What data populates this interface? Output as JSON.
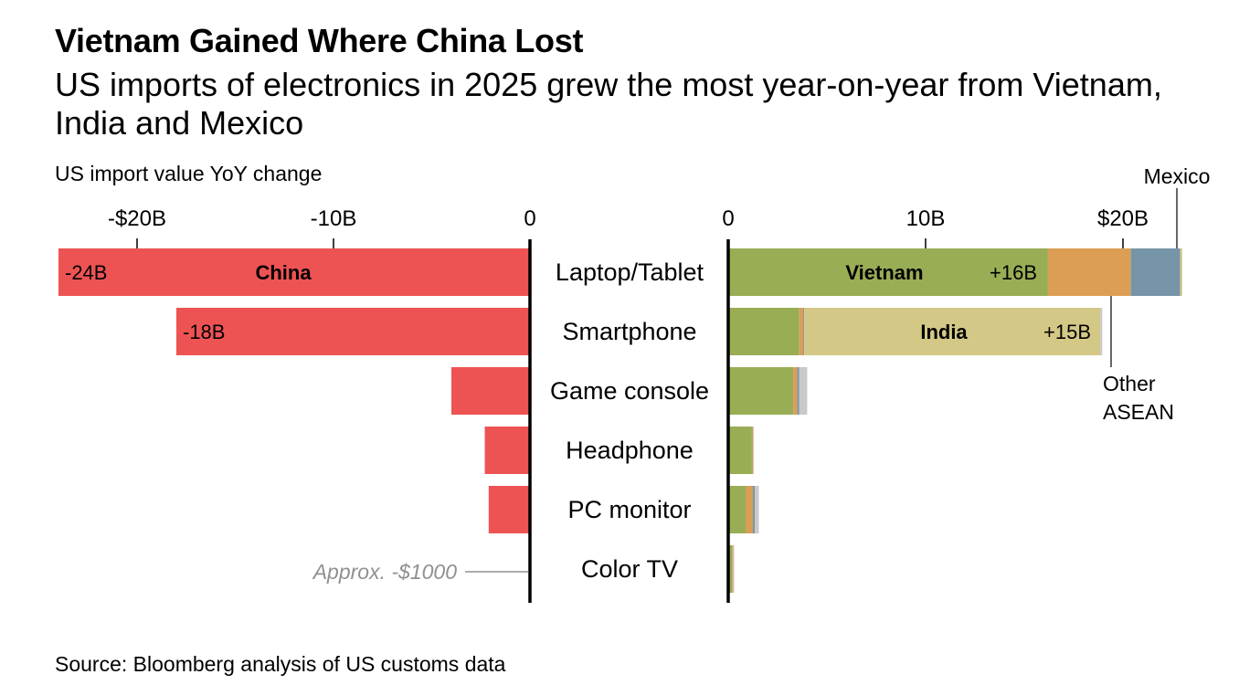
{
  "title": "Vietnam Gained Where China Lost",
  "subtitle": "US imports of electronics in 2025 grew the most year-on-year from Vietnam, India and Mexico",
  "source": "Source: Bloomberg analysis of US customs data",
  "colors": {
    "China": "#ee5353",
    "Vietnam": "#99ad55",
    "Other ASEAN": "#dc9e55",
    "Mexico": "#7795a8",
    "India": "#d4c887",
    "Other": "#c9c9c9",
    "axis": "#000000",
    "note": "#909090"
  },
  "chart_data": [
    {
      "type": "bar",
      "orientation": "horizontal",
      "title": "US import value YoY change",
      "side": "decrease",
      "units": "billion USD",
      "xlim": [
        -24,
        0
      ],
      "ticks": [
        -20,
        -10,
        0
      ],
      "tick_labels": [
        "-$20B",
        "-10B",
        "0"
      ],
      "categories": [
        "Laptop/Tablet",
        "Smartphone",
        "Game console",
        "Headphone",
        "PC monitor",
        "Color TV"
      ],
      "series": [
        {
          "name": "China",
          "values": [
            -24,
            -18,
            -4,
            -2.3,
            -2.1,
            -1e-06
          ]
        }
      ],
      "data_labels": [
        "-24B",
        "-18B",
        "",
        "",
        "",
        ""
      ],
      "series_label": "China",
      "annotation": "Approx. -$1000"
    },
    {
      "type": "bar",
      "orientation": "horizontal",
      "stacked": true,
      "side": "increase",
      "units": "billion USD",
      "xlim": [
        0,
        23
      ],
      "ticks": [
        0,
        10,
        20
      ],
      "tick_labels": [
        "0",
        "10B",
        "$20B"
      ],
      "categories": [
        "Laptop/Tablet",
        "Smartphone",
        "Game console",
        "Headphone",
        "PC monitor",
        "Color TV"
      ],
      "series": [
        {
          "name": "Vietnam",
          "values": [
            16.2,
            3.6,
            3.3,
            1.2,
            0.9,
            0.2
          ]
        },
        {
          "name": "Other ASEAN",
          "values": [
            4.2,
            0.2,
            0.2,
            0.05,
            0.35,
            0.05
          ]
        },
        {
          "name": "Mexico",
          "values": [
            2.5,
            0.05,
            0.1,
            0.0,
            0.1,
            0.0
          ]
        },
        {
          "name": "India",
          "values": [
            0.1,
            15.0,
            0.0,
            0.0,
            0.0,
            0.0
          ]
        },
        {
          "name": "Other",
          "values": [
            0.0,
            0.1,
            0.4,
            0.05,
            0.2,
            0.05
          ]
        }
      ],
      "inbar_labels": [
        {
          "category": "Laptop/Tablet",
          "series": "Vietnam",
          "name": "Vietnam",
          "value": "+16B"
        },
        {
          "category": "Smartphone",
          "series": "India",
          "name": "India",
          "value": "+15B"
        }
      ],
      "callouts": [
        "Mexico",
        "Other",
        "ASEAN"
      ]
    }
  ]
}
